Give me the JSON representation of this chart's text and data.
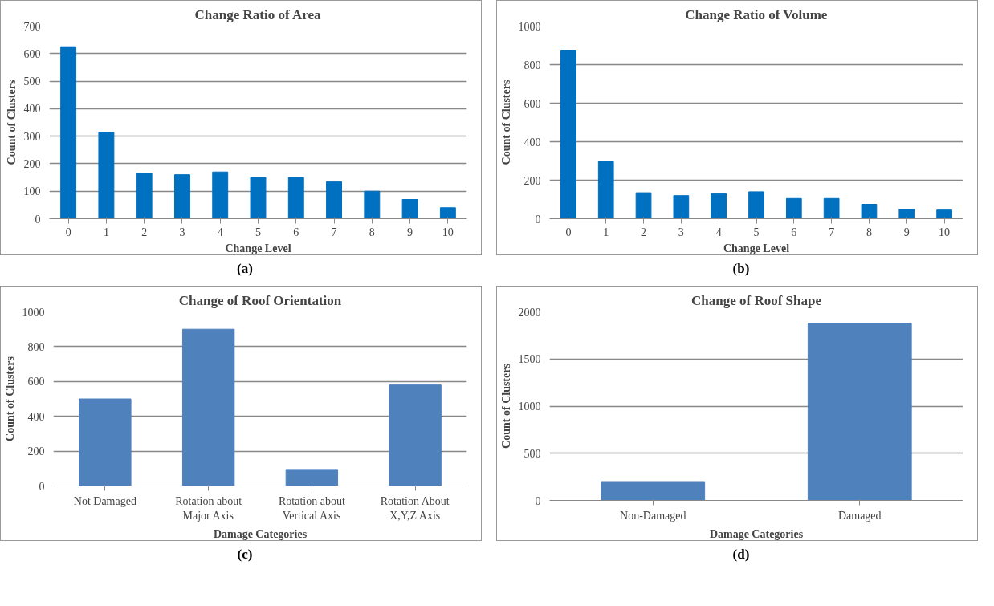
{
  "chart_data": [
    {
      "type": "bar",
      "title": "Change Ratio of Area",
      "xlabel": "Change Level",
      "ylabel": "Count of Clusters",
      "categories": [
        "0",
        "1",
        "2",
        "3",
        "4",
        "5",
        "6",
        "7",
        "8",
        "9",
        "10"
      ],
      "values": [
        625,
        315,
        165,
        160,
        170,
        150,
        150,
        135,
        100,
        70,
        40
      ],
      "color": "#0070c0",
      "ylim": [
        0,
        700
      ],
      "yticks": [
        0,
        100,
        200,
        300,
        400,
        500,
        600,
        700
      ],
      "grid": "y",
      "annotations": [
        "(a)"
      ]
    },
    {
      "type": "bar",
      "title": "Change Ratio of Volume",
      "xlabel": "Change Level",
      "ylabel": "Count of Clusters",
      "categories": [
        "0",
        "1",
        "2",
        "3",
        "4",
        "5",
        "6",
        "7",
        "8",
        "9",
        "10"
      ],
      "values": [
        875,
        300,
        135,
        120,
        130,
        140,
        105,
        105,
        75,
        50,
        45
      ],
      "color": "#0070c0",
      "ylim": [
        0,
        1000
      ],
      "yticks": [
        0,
        200,
        400,
        600,
        800,
        1000
      ],
      "grid": "y",
      "annotations": [
        "(b)"
      ]
    },
    {
      "type": "bar",
      "title": "Change of Roof Orientation",
      "xlabel": "Damage Categories",
      "ylabel": "Count of Clusters",
      "categories": [
        "Not Damaged",
        "Rotation about\nMajor Axis",
        "Rotation about\nVertical Axis",
        "Rotation About\nX,Y,Z Axis"
      ],
      "values": [
        500,
        900,
        95,
        580
      ],
      "color": "#4f81bd",
      "ylim": [
        0,
        1000
      ],
      "yticks": [
        0,
        200,
        400,
        600,
        800,
        1000
      ],
      "grid": "y",
      "annotations": [
        "(c)"
      ]
    },
    {
      "type": "bar",
      "title": "Change of Roof Shape",
      "xlabel": "Damage Categories",
      "ylabel": "Count of Clusters",
      "categories": [
        "Non-Damaged",
        "Damaged"
      ],
      "values": [
        200,
        1880
      ],
      "color": "#4f81bd",
      "ylim": [
        0,
        2000
      ],
      "yticks": [
        0,
        500,
        1000,
        1500,
        2000
      ],
      "grid": "y",
      "annotations": [
        "(d)"
      ]
    }
  ]
}
